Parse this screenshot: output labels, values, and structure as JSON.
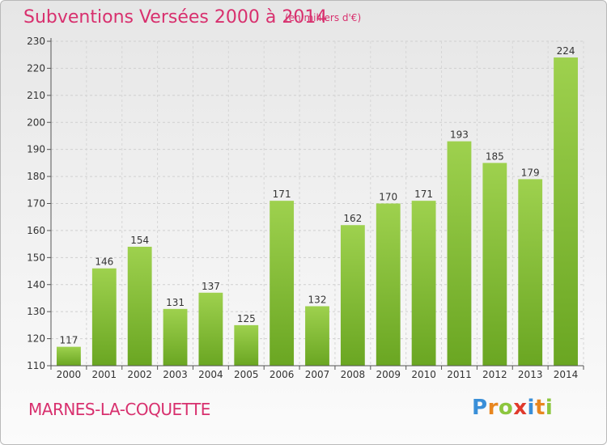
{
  "header": {
    "title": "Subventions Versées 2000 à 2014",
    "subtitle": "(en milliers d'€)"
  },
  "footer": {
    "commune": "MARNES-LA-COQUETTE",
    "logo_letters": [
      "P",
      "r",
      "o",
      "x",
      "i",
      "t",
      "i"
    ],
    "logo_colors": [
      "#3a8fd8",
      "#e8861f",
      "#8cc63e",
      "#e03a2c",
      "#3a8fd8",
      "#e8861f",
      "#8cc63e"
    ]
  },
  "chart_data": {
    "type": "bar",
    "title": "Subventions Versées 2000 à 2014",
    "subtitle": "(en milliers d'€)",
    "categories": [
      "2000",
      "2001",
      "2002",
      "2003",
      "2004",
      "2005",
      "2006",
      "2007",
      "2008",
      "2009",
      "2010",
      "2011",
      "2012",
      "2013",
      "2014"
    ],
    "values": [
      117,
      146,
      154,
      131,
      137,
      125,
      171,
      132,
      162,
      170,
      171,
      193,
      185,
      179,
      224
    ],
    "ylim": [
      110,
      230
    ],
    "yticks": [
      110,
      120,
      130,
      140,
      150,
      160,
      170,
      180,
      190,
      200,
      210,
      220,
      230
    ],
    "grid": true,
    "bar_color_top": "#9ed14e",
    "bar_color_bottom": "#6aa622"
  }
}
